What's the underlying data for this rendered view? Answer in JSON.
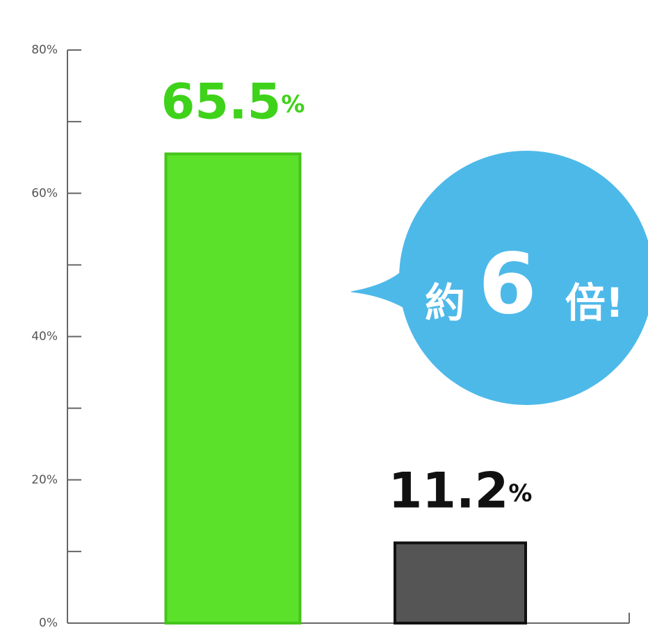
{
  "chart_data": {
    "type": "bar",
    "categories": [
      null,
      null
    ],
    "values": [
      65.5,
      11.2
    ],
    "value_labels": [
      "65.5%",
      "11.2%"
    ],
    "colors": [
      "#5ce12b",
      "#555555"
    ],
    "label_colors": [
      "#3fd21a",
      "#111111"
    ],
    "ylim": [
      0,
      80
    ],
    "yticks": [
      {
        "value": 0,
        "label": "0%"
      },
      {
        "value": 20,
        "label": "20%"
      },
      {
        "value": 40,
        "label": "40%"
      },
      {
        "value": 60,
        "label": "60%"
      },
      {
        "value": 80,
        "label": "80%"
      }
    ],
    "yminor_ticks": [
      10,
      30,
      50,
      70
    ],
    "annotation": [
      "約",
      "6",
      "倍!"
    ]
  }
}
